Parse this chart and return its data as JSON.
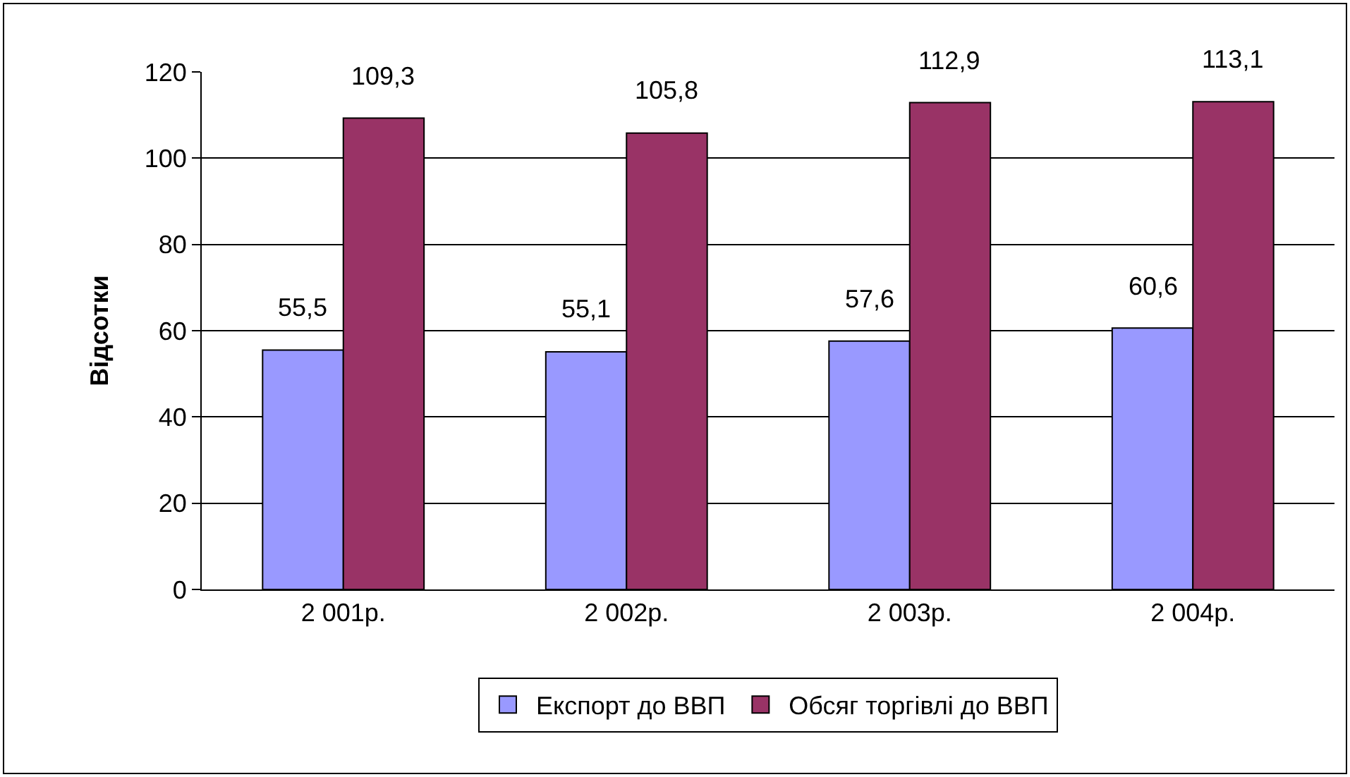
{
  "chart_data": {
    "type": "bar",
    "ylabel": "Відсотки",
    "categories": [
      "2 001р.",
      "2 002р.",
      "2 003р.",
      "2 004р."
    ],
    "series": [
      {
        "name": "Експорт до ВВП",
        "color": "#9999ff",
        "values": [
          55.5,
          55.1,
          57.6,
          60.6
        ],
        "value_labels": [
          "55,5",
          "55,1",
          "57,6",
          "60,6"
        ]
      },
      {
        "name": "Обсяг торгівлі до ВВП",
        "color": "#993366",
        "values": [
          109.3,
          105.8,
          112.9,
          113.1
        ],
        "value_labels": [
          "109,3",
          "105,8",
          "112,9",
          "113,1"
        ]
      }
    ],
    "ylim": [
      0,
      120
    ],
    "yticks": [
      0,
      20,
      40,
      60,
      80,
      100,
      120
    ],
    "grid": "y",
    "legend": "bottom"
  }
}
